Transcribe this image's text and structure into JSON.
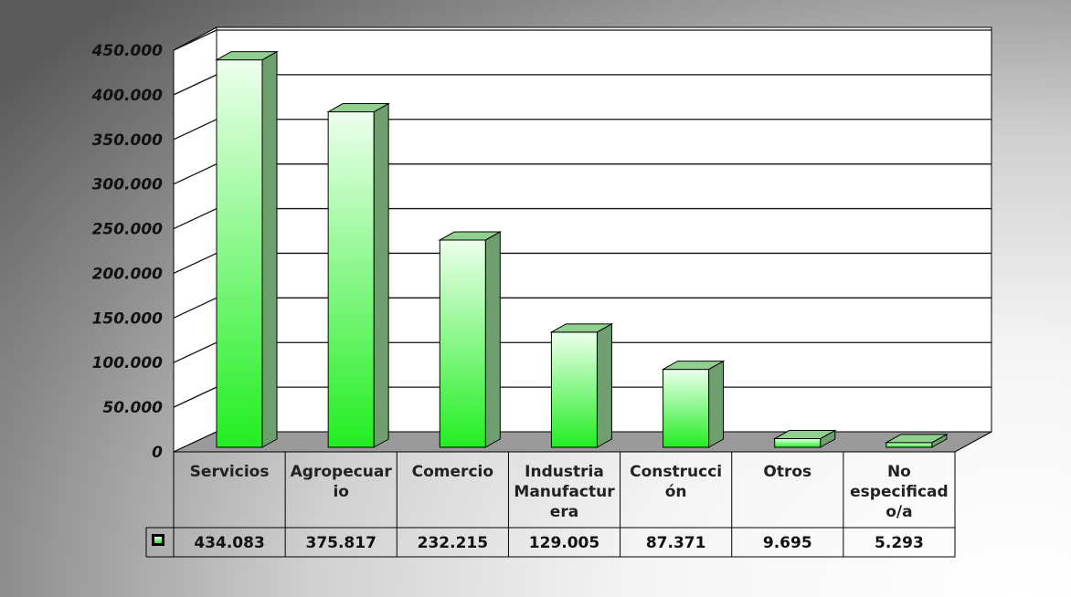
{
  "chart_data": {
    "type": "bar",
    "style": "3d-column-with-data-table",
    "categories": [
      "Servicios",
      "Agropecuario",
      "Comercio",
      "Industria Manufacturera",
      "Construcción",
      "Otros",
      "No especificado/a"
    ],
    "category_label_lines": [
      [
        "Servicios"
      ],
      [
        "Agropecuar",
        "io"
      ],
      [
        "Comercio"
      ],
      [
        "Industria",
        "Manufactur",
        "era"
      ],
      [
        "Construcci",
        "ón"
      ],
      [
        "Otros"
      ],
      [
        "No",
        "especificad",
        "o/a"
      ]
    ],
    "series": [
      {
        "values": [
          434083,
          375817,
          232215,
          129005,
          87371,
          9695,
          5293
        ]
      }
    ],
    "value_labels": [
      "434.083",
      "375.817",
      "232.215",
      "129.005",
      "87.371",
      "9.695",
      "5.293"
    ],
    "ylim": [
      0,
      450000
    ],
    "yticks": [
      0,
      50000,
      100000,
      150000,
      200000,
      250000,
      300000,
      350000,
      400000,
      450000
    ],
    "ytick_labels": [
      "0",
      "50.000",
      "100.000",
      "150.000",
      "200.000",
      "250.000",
      "300.000",
      "350.000",
      "400.000",
      "450.000"
    ],
    "grid": true,
    "legend": "data-table-key",
    "colors": {
      "bar_top": "#e6ffe6",
      "bar_bottom": "#22ee22",
      "bar_side": "#6f9f6f",
      "bar_roof": "#8fd08f",
      "grid": "#111111",
      "wall": "#ffffff"
    }
  }
}
